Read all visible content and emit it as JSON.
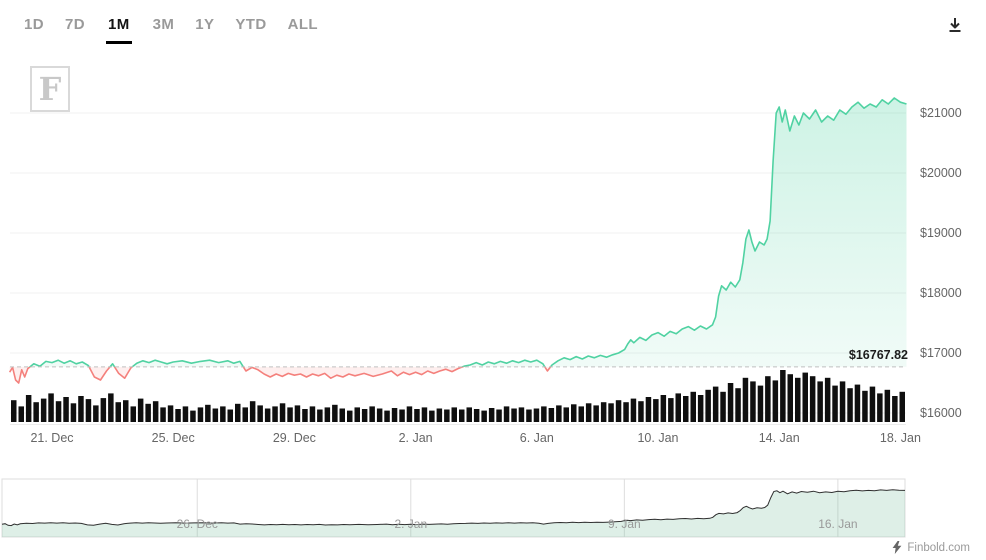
{
  "toolbar": {
    "ranges": [
      {
        "label": "1D",
        "active": false
      },
      {
        "label": "7D",
        "active": false
      },
      {
        "label": "1M",
        "active": true
      },
      {
        "label": "3M",
        "active": false
      },
      {
        "label": "1Y",
        "active": false
      },
      {
        "label": "YTD",
        "active": false
      },
      {
        "label": "ALL",
        "active": false
      }
    ]
  },
  "watermark": {
    "letter": "F"
  },
  "attribution": {
    "label": "Finbold.com"
  },
  "chart_data": {
    "type": "line",
    "title": "",
    "y_axis": {
      "ticks": [
        16000,
        17000,
        18000,
        19000,
        20000,
        21000
      ],
      "labels": [
        "$16000",
        "$17000",
        "$18000",
        "$19000",
        "$20000",
        "$21000"
      ],
      "ylim": [
        15800,
        21550
      ]
    },
    "x_axis": {
      "tick_days": [
        0,
        4,
        8,
        12,
        16,
        20,
        24,
        28
      ],
      "tick_labels": [
        "21. Dec",
        "25. Dec",
        "29. Dec",
        "2. Jan",
        "6. Jan",
        "10. Jan",
        "14. Jan",
        "18. Jan"
      ]
    },
    "baseline": {
      "value": 16767.82,
      "label": "$16767.82"
    },
    "colors": {
      "up": "#50d2a2",
      "down": "#f4807c",
      "volume": "#0f0f0f",
      "baseline": "#c0c0c0",
      "grid": "#f0f0f0"
    },
    "series": [
      {
        "points": [
          [
            -1.4,
            16680
          ],
          [
            -1.3,
            16760
          ],
          [
            -1.2,
            16550
          ],
          [
            -1.1,
            16500
          ],
          [
            -1.0,
            16720
          ],
          [
            -0.9,
            16600
          ],
          [
            -0.8,
            16740
          ],
          [
            -0.6,
            16820
          ],
          [
            -0.4,
            16780
          ],
          [
            -0.2,
            16860
          ],
          [
            0.0,
            16840
          ],
          [
            0.2,
            16880
          ],
          [
            0.4,
            16830
          ],
          [
            0.6,
            16870
          ],
          [
            0.8,
            16820
          ],
          [
            1.0,
            16850
          ],
          [
            1.2,
            16790
          ],
          [
            1.4,
            16600
          ],
          [
            1.6,
            16550
          ],
          [
            1.8,
            16700
          ],
          [
            2.0,
            16820
          ],
          [
            2.2,
            16660
          ],
          [
            2.4,
            16580
          ],
          [
            2.6,
            16750
          ],
          [
            2.8,
            16830
          ],
          [
            3.0,
            16870
          ],
          [
            3.2,
            16840
          ],
          [
            3.4,
            16880
          ],
          [
            3.6,
            16850
          ],
          [
            3.8,
            16820
          ],
          [
            4.0,
            16850
          ],
          [
            4.3,
            16870
          ],
          [
            4.6,
            16830
          ],
          [
            4.9,
            16860
          ],
          [
            5.2,
            16880
          ],
          [
            5.5,
            16840
          ],
          [
            5.8,
            16870
          ],
          [
            6.0,
            16830
          ],
          [
            6.2,
            16860
          ],
          [
            6.4,
            16700
          ],
          [
            6.6,
            16760
          ],
          [
            6.8,
            16720
          ],
          [
            7.0,
            16650
          ],
          [
            7.2,
            16600
          ],
          [
            7.4,
            16650
          ],
          [
            7.6,
            16610
          ],
          [
            7.8,
            16660
          ],
          [
            8.0,
            16630
          ],
          [
            8.2,
            16650
          ],
          [
            8.4,
            16600
          ],
          [
            8.6,
            16650
          ],
          [
            8.8,
            16620
          ],
          [
            9.0,
            16660
          ],
          [
            9.2,
            16580
          ],
          [
            9.4,
            16630
          ],
          [
            9.6,
            16600
          ],
          [
            9.8,
            16650
          ],
          [
            10.0,
            16620
          ],
          [
            10.3,
            16660
          ],
          [
            10.6,
            16610
          ],
          [
            10.9,
            16650
          ],
          [
            11.2,
            16700
          ],
          [
            11.4,
            16620
          ],
          [
            11.6,
            16680
          ],
          [
            11.8,
            16640
          ],
          [
            12.0,
            16680
          ],
          [
            12.2,
            16640
          ],
          [
            12.4,
            16700
          ],
          [
            12.6,
            16660
          ],
          [
            12.8,
            16700
          ],
          [
            13.0,
            16730
          ],
          [
            13.2,
            16690
          ],
          [
            13.4,
            16740
          ],
          [
            13.6,
            16780
          ],
          [
            13.8,
            16800
          ],
          [
            14.0,
            16840
          ],
          [
            14.2,
            16800
          ],
          [
            14.4,
            16850
          ],
          [
            14.6,
            16820
          ],
          [
            14.8,
            16860
          ],
          [
            15.0,
            16830
          ],
          [
            15.2,
            16870
          ],
          [
            15.4,
            16840
          ],
          [
            15.6,
            16880
          ],
          [
            15.8,
            16850
          ],
          [
            16.0,
            16880
          ],
          [
            16.2,
            16820
          ],
          [
            16.35,
            16700
          ],
          [
            16.5,
            16800
          ],
          [
            16.7,
            16870
          ],
          [
            16.9,
            16920
          ],
          [
            17.1,
            16890
          ],
          [
            17.3,
            16940
          ],
          [
            17.5,
            16900
          ],
          [
            17.7,
            16950
          ],
          [
            17.9,
            16920
          ],
          [
            18.1,
            16960
          ],
          [
            18.3,
            16930
          ],
          [
            18.5,
            16970
          ],
          [
            18.7,
            17000
          ],
          [
            18.9,
            17060
          ],
          [
            19.0,
            17150
          ],
          [
            19.1,
            17220
          ],
          [
            19.2,
            17170
          ],
          [
            19.4,
            17260
          ],
          [
            19.6,
            17210
          ],
          [
            19.8,
            17300
          ],
          [
            20.0,
            17340
          ],
          [
            20.2,
            17280
          ],
          [
            20.4,
            17360
          ],
          [
            20.6,
            17320
          ],
          [
            20.8,
            17400
          ],
          [
            21.0,
            17440
          ],
          [
            21.2,
            17380
          ],
          [
            21.4,
            17450
          ],
          [
            21.6,
            17400
          ],
          [
            21.8,
            17470
          ],
          [
            21.9,
            17600
          ],
          [
            22.0,
            17950
          ],
          [
            22.1,
            18120
          ],
          [
            22.25,
            18050
          ],
          [
            22.4,
            18180
          ],
          [
            22.55,
            18100
          ],
          [
            22.7,
            18220
          ],
          [
            22.8,
            18500
          ],
          [
            22.9,
            18900
          ],
          [
            23.0,
            19050
          ],
          [
            23.1,
            18850
          ],
          [
            23.2,
            18700
          ],
          [
            23.35,
            18850
          ],
          [
            23.5,
            18800
          ],
          [
            23.6,
            18900
          ],
          [
            23.7,
            19200
          ],
          [
            23.8,
            20200
          ],
          [
            23.9,
            21000
          ],
          [
            24.0,
            21100
          ],
          [
            24.1,
            20850
          ],
          [
            24.2,
            21050
          ],
          [
            24.35,
            20700
          ],
          [
            24.5,
            20950
          ],
          [
            24.65,
            20800
          ],
          [
            24.8,
            21000
          ],
          [
            25.0,
            20900
          ],
          [
            25.2,
            21050
          ],
          [
            25.4,
            20850
          ],
          [
            25.6,
            20950
          ],
          [
            25.8,
            20880
          ],
          [
            26.0,
            21050
          ],
          [
            26.2,
            20980
          ],
          [
            26.4,
            21100
          ],
          [
            26.6,
            21180
          ],
          [
            26.8,
            21080
          ],
          [
            27.0,
            21150
          ],
          [
            27.2,
            21100
          ],
          [
            27.4,
            21220
          ],
          [
            27.6,
            21150
          ],
          [
            27.8,
            21250
          ],
          [
            28.0,
            21180
          ],
          [
            28.2,
            21150
          ]
        ]
      }
    ],
    "volume": {
      "values": [
        0.42,
        0.3,
        0.52,
        0.38,
        0.45,
        0.55,
        0.4,
        0.48,
        0.36,
        0.5,
        0.44,
        0.32,
        0.46,
        0.55,
        0.38,
        0.42,
        0.3,
        0.45,
        0.35,
        0.4,
        0.28,
        0.32,
        0.25,
        0.3,
        0.22,
        0.28,
        0.33,
        0.26,
        0.3,
        0.24,
        0.35,
        0.28,
        0.4,
        0.32,
        0.26,
        0.3,
        0.36,
        0.28,
        0.32,
        0.25,
        0.3,
        0.24,
        0.28,
        0.33,
        0.26,
        0.22,
        0.28,
        0.25,
        0.3,
        0.26,
        0.22,
        0.27,
        0.24,
        0.3,
        0.25,
        0.28,
        0.22,
        0.26,
        0.24,
        0.28,
        0.24,
        0.28,
        0.25,
        0.22,
        0.27,
        0.24,
        0.3,
        0.26,
        0.28,
        0.24,
        0.26,
        0.3,
        0.27,
        0.32,
        0.28,
        0.34,
        0.3,
        0.36,
        0.32,
        0.38,
        0.36,
        0.42,
        0.38,
        0.45,
        0.4,
        0.48,
        0.44,
        0.52,
        0.46,
        0.55,
        0.5,
        0.58,
        0.52,
        0.62,
        0.68,
        0.58,
        0.75,
        0.65,
        0.85,
        0.78,
        0.7,
        0.88,
        0.8,
        1.0,
        0.92,
        0.85,
        0.95,
        0.88,
        0.78,
        0.85,
        0.7,
        0.78,
        0.65,
        0.72,
        0.6,
        0.68,
        0.55,
        0.62,
        0.5,
        0.58
      ]
    },
    "navigator": {
      "range_days": [
        -1.4,
        28.2
      ],
      "tick_days": [
        5,
        12,
        19,
        26
      ],
      "tick_labels": [
        "26. Dec",
        "2. Jan",
        "9. Jan",
        "16. Jan"
      ]
    }
  }
}
